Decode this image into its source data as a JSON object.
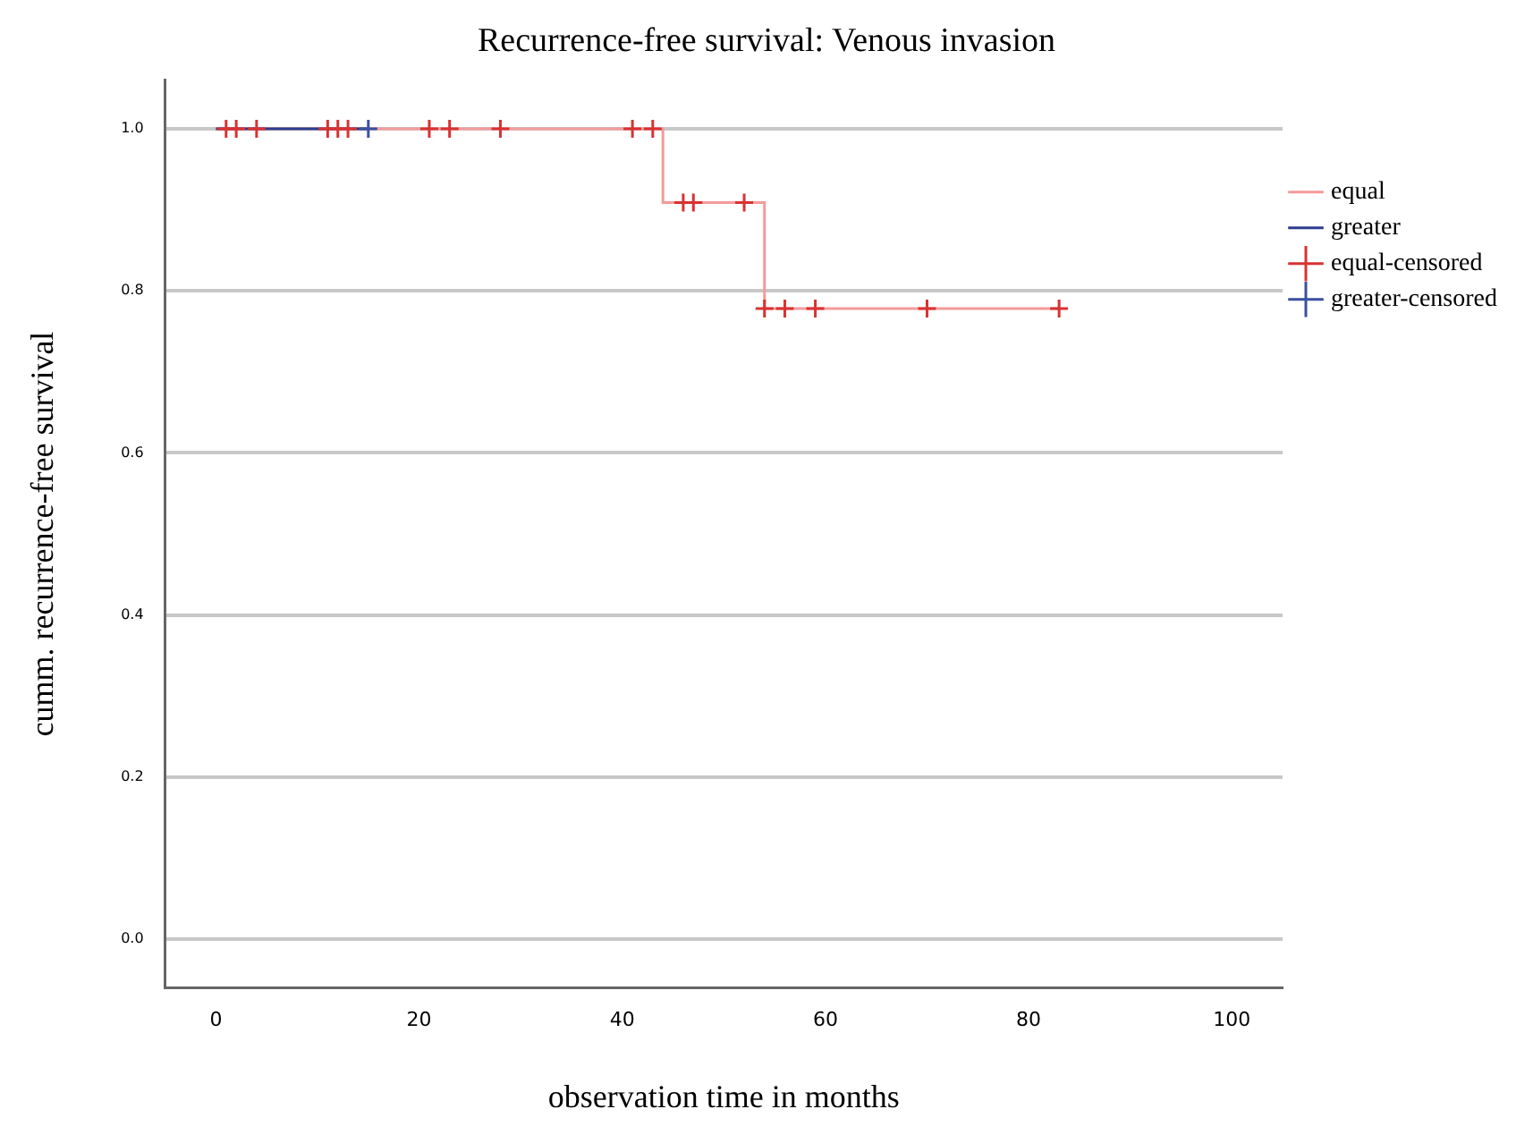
{
  "chart_data": {
    "type": "step",
    "title": "Recurrence-free survival: Venous invasion",
    "xlabel": "observation time in months",
    "ylabel": "cumm. recurrence-free survival",
    "xlim": [
      -5,
      105
    ],
    "xticks": [
      0,
      20,
      40,
      60,
      80,
      100
    ],
    "ylim": [
      -0.06,
      1.06
    ],
    "yticks": [
      {
        "value": 0,
        "label": "0.0"
      },
      {
        "value": 0.2,
        "label": "0.2"
      },
      {
        "value": 0.4,
        "label": "0.4"
      },
      {
        "value": 0.6,
        "label": "0.6"
      },
      {
        "value": 0.8,
        "label": "0.8"
      },
      {
        "value": 1,
        "label": "1.0"
      }
    ],
    "grid": "y",
    "legend": "right",
    "series": [
      {
        "name": "equal",
        "color": "#f49a9a",
        "x": [
          0,
          44,
          54,
          83
        ],
        "values": [
          1,
          0.909,
          0.778,
          0.778
        ]
      },
      {
        "name": "greater",
        "color": "#2b3d8f",
        "x": [
          0,
          15
        ],
        "values": [
          1,
          1
        ]
      },
      {
        "name": "equal-censored",
        "type": "scatter",
        "marker": "cross",
        "color": "#d93232",
        "x": [
          1,
          2,
          4,
          11,
          12,
          13,
          21,
          23,
          28,
          41,
          43,
          46,
          47,
          52,
          54,
          56,
          59,
          70,
          83
        ],
        "values": [
          1,
          1,
          1,
          1,
          1,
          1,
          1,
          1,
          1,
          1,
          1,
          0.909,
          0.909,
          0.909,
          0.778,
          0.778,
          0.778,
          0.778,
          0.778
        ]
      },
      {
        "name": "greater-censored",
        "type": "scatter",
        "marker": "cross",
        "color": "#3a50a0",
        "x": [
          15
        ],
        "values": [
          1
        ]
      }
    ]
  }
}
